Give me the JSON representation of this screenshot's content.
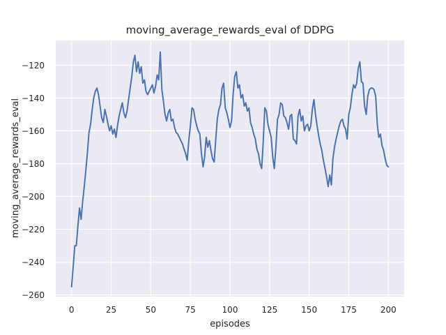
{
  "chart_data": {
    "type": "line",
    "title": "moving_average_rewards_eval of DDPG",
    "xlabel": "episodes",
    "ylabel": "moving_average_rewards_eval",
    "x_ticks": [
      0,
      25,
      50,
      75,
      100,
      125,
      150,
      175,
      200
    ],
    "y_ticks": [
      -260,
      -240,
      -220,
      -200,
      -180,
      -160,
      -140,
      -120
    ],
    "xlim": [
      -10,
      210
    ],
    "ylim": [
      -261,
      -105
    ],
    "grid": true,
    "legend": false,
    "style": {
      "plot_bg": "#eaeaf2",
      "grid_color": "#ffffff",
      "line_color": "#4c72b0",
      "text_color": "#262626",
      "line_width": 2,
      "grid_width": 1.2
    },
    "series": [
      {
        "name": "moving_average_rewards_eval",
        "x_start": 0,
        "x_step": 1,
        "y": [
          -255,
          -243,
          -230,
          -230,
          -218,
          -207,
          -214,
          -203,
          -194,
          -184,
          -173,
          -161,
          -156,
          -147,
          -140,
          -136,
          -134,
          -138,
          -145,
          -152,
          -155,
          -147,
          -151,
          -156,
          -160,
          -157,
          -162,
          -159,
          -164,
          -157,
          -151,
          -147,
          -143,
          -149,
          -152,
          -148,
          -141,
          -134,
          -127,
          -118,
          -114,
          -124,
          -118,
          -125,
          -121,
          -131,
          -129,
          -136,
          -138,
          -136,
          -134,
          -132,
          -137,
          -133,
          -126,
          -129,
          -112,
          -135,
          -142,
          -150,
          -154,
          -149,
          -147,
          -154,
          -153,
          -158,
          -161,
          -162,
          -164,
          -166,
          -168,
          -171,
          -174,
          -178,
          -166,
          -157,
          -146,
          -147,
          -153,
          -157,
          -160,
          -162,
          -174,
          -182,
          -176,
          -164,
          -170,
          -166,
          -172,
          -177,
          -179,
          -166,
          -153,
          -147,
          -144,
          -134,
          -131,
          -146,
          -149,
          -153,
          -158,
          -154,
          -138,
          -127,
          -124,
          -134,
          -132,
          -140,
          -138,
          -145,
          -143,
          -148,
          -146,
          -155,
          -158,
          -162,
          -165,
          -171,
          -174,
          -180,
          -183,
          -167,
          -146,
          -148,
          -156,
          -160,
          -164,
          -176,
          -183,
          -170,
          -153,
          -150,
          -143,
          -144,
          -151,
          -152,
          -155,
          -159,
          -151,
          -150,
          -165,
          -166,
          -168,
          -151,
          -147,
          -154,
          -151,
          -160,
          -157,
          -156,
          -160,
          -157,
          -147,
          -141,
          -150,
          -157,
          -163,
          -168,
          -172,
          -178,
          -183,
          -188,
          -194,
          -187,
          -193,
          -177,
          -170,
          -165,
          -161,
          -157,
          -154,
          -153,
          -157,
          -159,
          -165,
          -150,
          -146,
          -138,
          -132,
          -134,
          -131,
          -122,
          -118,
          -130,
          -131,
          -145,
          -150,
          -139,
          -135,
          -134,
          -134,
          -135,
          -139,
          -156,
          -164,
          -162,
          -169,
          -172,
          -177,
          -181,
          -182
        ]
      }
    ]
  }
}
